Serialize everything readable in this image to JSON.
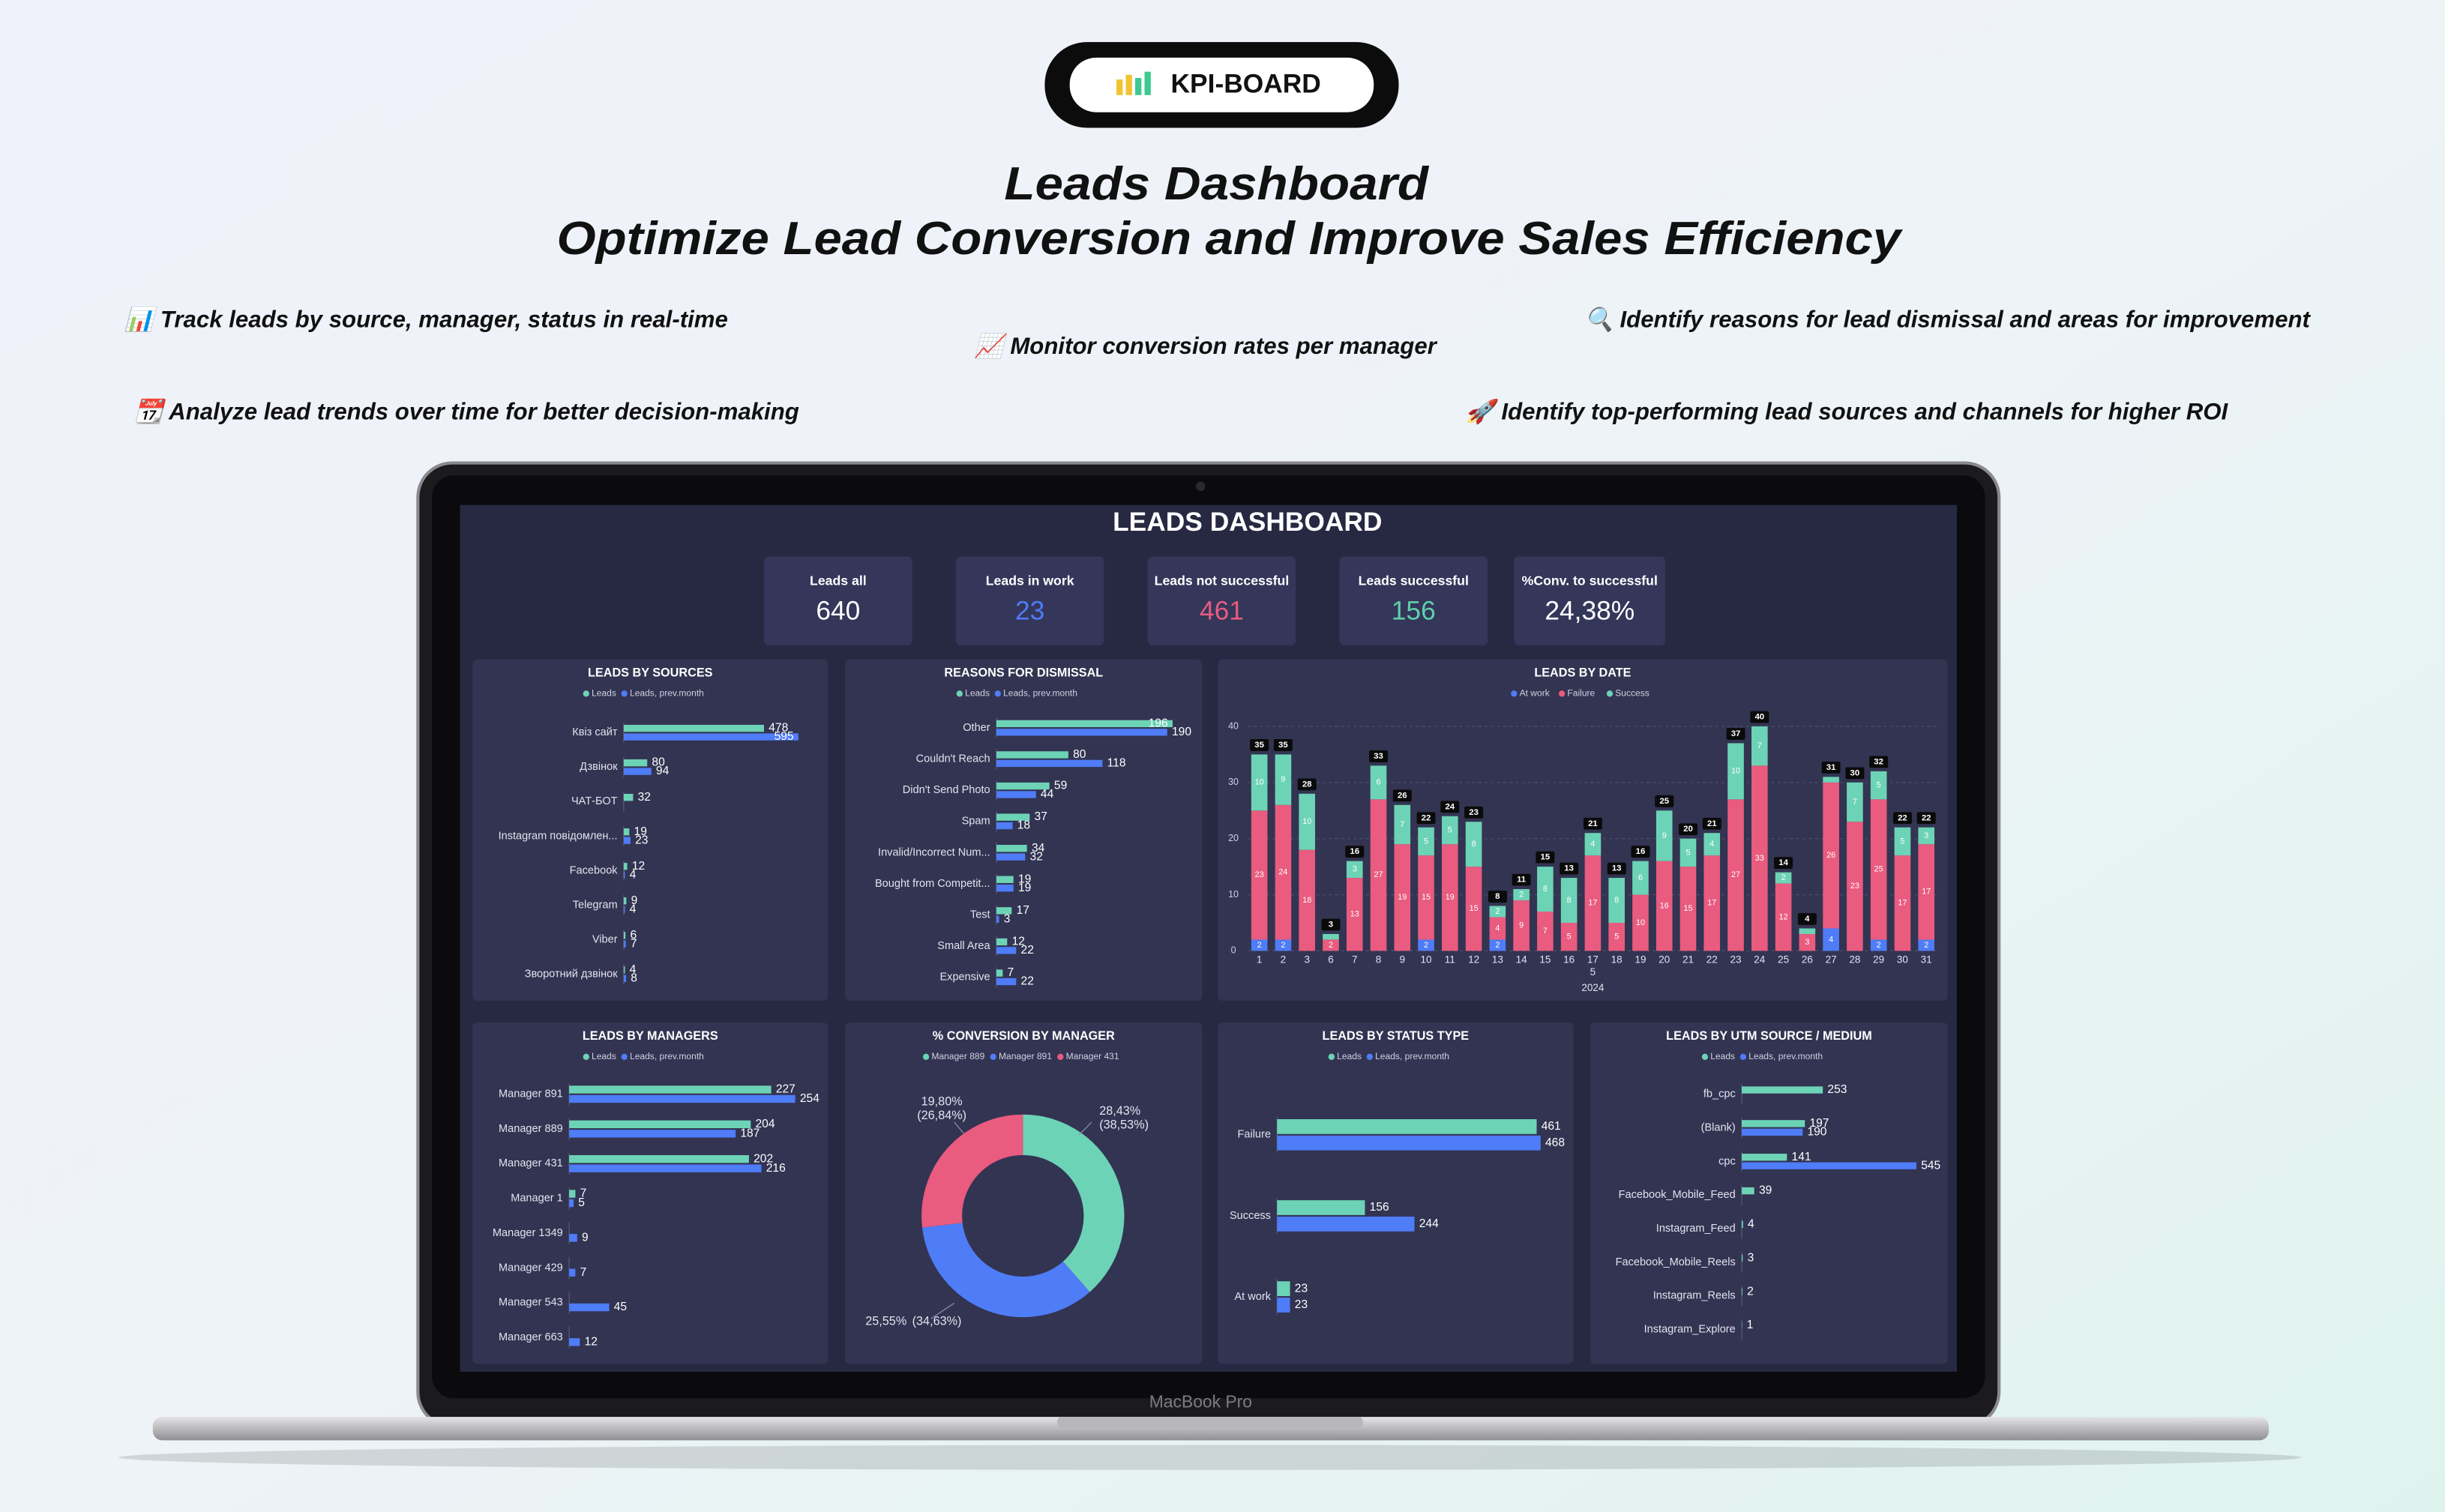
{
  "header": {
    "badge": "KPI-BOARD",
    "title": "Leads Dashboard",
    "subtitle": "Optimize Lead Conversion and Improve Sales Efficiency"
  },
  "features": [
    "📊 Track leads by source, manager, status in real-time",
    "📈 Monitor conversion rates per manager",
    "🔍 Identify reasons for lead dismissal and areas for improvement",
    "📆 Analyze lead trends over time for better decision-making",
    "🚀 Identify top-performing lead sources and channels for higher ROI"
  ],
  "device_label": "MacBook Pro",
  "dashboard": {
    "title": "LEADS DASHBOARD",
    "kpis": [
      {
        "label": "Leads all",
        "value": 640,
        "color": "#ffffff"
      },
      {
        "label": "Leads in work",
        "value": 23,
        "color": "#4f7cf7"
      },
      {
        "label": "Leads not successful",
        "value": 461,
        "color": "#e95b7f"
      },
      {
        "label": "Leads successful",
        "value": 156,
        "color": "#5fd0a8"
      },
      {
        "label": "%Conv. to successful",
        "value": "24,38%",
        "color": "#ffffff"
      }
    ]
  },
  "chart_data": [
    {
      "type": "bar",
      "horizontal": true,
      "title": "LEADS BY SOURCES",
      "categories": [
        "Квіз сайт",
        "Дзвінок",
        "ЧАТ-БОТ",
        "Instagram повідомлен...",
        "Facebook",
        "Telegram",
        "Viber",
        "Зворотний дзвінок"
      ],
      "series": [
        {
          "name": "Leads",
          "color": "#6dd3b6",
          "values": [
            478,
            80,
            32,
            19,
            12,
            9,
            6,
            4
          ]
        },
        {
          "name": "Leads, prev.month",
          "color": "#4f7cf7",
          "values": [
            595,
            94,
            null,
            23,
            4,
            4,
            7,
            8
          ]
        }
      ]
    },
    {
      "type": "bar",
      "horizontal": true,
      "title": "REASONS FOR DISMISSAL",
      "categories": [
        "Other",
        "Couldn't Reach",
        "Didn't Send Photo",
        "Spam",
        "Invalid/Incorrect Num...",
        "Bought from Competit...",
        "Test",
        "Small Area",
        "Expensive"
      ],
      "series": [
        {
          "name": "Leads",
          "color": "#6dd3b6",
          "values": [
            196,
            80,
            59,
            37,
            34,
            19,
            17,
            12,
            7
          ]
        },
        {
          "name": "Leads, prev.month",
          "color": "#4f7cf7",
          "values": [
            190,
            118,
            44,
            18,
            32,
            19,
            3,
            22,
            22
          ]
        }
      ]
    },
    {
      "type": "bar",
      "stacked": true,
      "title": "LEADS BY DATE",
      "categories": [
        "1",
        "2",
        "3",
        "6",
        "7",
        "8",
        "9",
        "10",
        "11",
        "12",
        "13",
        "14",
        "15",
        "16",
        "17",
        "18",
        "19",
        "20",
        "21",
        "22",
        "23",
        "24",
        "25",
        "26",
        "27",
        "28",
        "29",
        "30",
        "31"
      ],
      "month_label": "5",
      "year_label": "2024",
      "series": [
        {
          "name": "At work",
          "color": "#4f7cf7",
          "values": [
            2,
            2,
            0,
            0,
            0,
            0,
            0,
            2,
            0,
            0,
            2,
            0,
            0,
            0,
            0,
            0,
            0,
            0,
            0,
            0,
            0,
            0,
            0,
            0,
            4,
            0,
            2,
            0,
            2
          ]
        },
        {
          "name": "Failure",
          "color": "#e95b7f",
          "values": [
            23,
            24,
            18,
            2,
            13,
            27,
            19,
            15,
            19,
            15,
            4,
            9,
            7,
            5,
            17,
            5,
            10,
            16,
            15,
            17,
            27,
            33,
            12,
            3,
            26,
            23,
            25,
            17,
            17
          ]
        },
        {
          "name": "Success",
          "color": "#6dd3b6",
          "values": [
            10,
            9,
            10,
            1,
            3,
            6,
            7,
            5,
            5,
            8,
            2,
            2,
            8,
            8,
            4,
            8,
            6,
            9,
            5,
            4,
            10,
            7,
            2,
            1,
            1,
            7,
            5,
            5,
            3
          ]
        }
      ],
      "totals": [
        35,
        35,
        28,
        3,
        16,
        33,
        26,
        22,
        24,
        23,
        8,
        11,
        15,
        13,
        21,
        13,
        16,
        25,
        20,
        21,
        37,
        40,
        14,
        4,
        31,
        30,
        32,
        22,
        22
      ],
      "ylim": [
        0,
        40
      ],
      "yticks": [
        0,
        10,
        20,
        30,
        40
      ],
      "grid": true
    },
    {
      "type": "bar",
      "horizontal": true,
      "title": "LEADS BY MANAGERS",
      "categories": [
        "Manager 891",
        "Manager 889",
        "Manager 431",
        "Manager 1",
        "Manager 1349",
        "Manager 429",
        "Manager 543",
        "Manager 663"
      ],
      "series": [
        {
          "name": "Leads",
          "color": "#6dd3b6",
          "values": [
            227,
            204,
            202,
            7,
            null,
            null,
            null,
            null
          ]
        },
        {
          "name": "Leads, prev.month",
          "color": "#4f7cf7",
          "values": [
            254,
            187,
            216,
            5,
            9,
            7,
            45,
            12
          ]
        }
      ]
    },
    {
      "type": "pie",
      "donut": true,
      "title": "% CONVERSION BY MANAGER",
      "categories": [
        "Manager 889",
        "Manager 891",
        "Manager 431"
      ],
      "colors": [
        "#6dd3b6",
        "#4f7cf7",
        "#e95b7f"
      ],
      "values": [
        28.43,
        25.55,
        19.8
      ],
      "value_labels": [
        "28,43%",
        "25,55%",
        "19,80%"
      ],
      "shares": [
        38.53,
        34.63,
        26.84
      ],
      "share_labels": [
        "(38,53%)",
        "(34,63%)",
        "(26,84%)"
      ]
    },
    {
      "type": "bar",
      "horizontal": true,
      "title": "LEADS BY STATUS TYPE",
      "categories": [
        "Failure",
        "Success",
        "At work"
      ],
      "series": [
        {
          "name": "Leads",
          "color": "#6dd3b6",
          "values": [
            461,
            156,
            23
          ]
        },
        {
          "name": "Leads, prev.month",
          "color": "#4f7cf7",
          "values": [
            468,
            244,
            23
          ]
        }
      ]
    },
    {
      "type": "bar",
      "horizontal": true,
      "title": "LEADS BY UTM SOURCE / MEDIUM",
      "categories": [
        "fb_cpc",
        "(Blank)",
        "cpc",
        "Facebook_Mobile_Feed",
        "Instagram_Feed",
        "Facebook_Mobile_Reels",
        "Instagram_Reels",
        "Instagram_Explore"
      ],
      "series": [
        {
          "name": "Leads",
          "color": "#6dd3b6",
          "values": [
            253,
            197,
            141,
            39,
            4,
            3,
            2,
            1
          ]
        },
        {
          "name": "Leads, prev.month",
          "color": "#4f7cf7",
          "values": [
            null,
            190,
            545,
            null,
            null,
            null,
            null,
            null
          ]
        }
      ]
    }
  ]
}
